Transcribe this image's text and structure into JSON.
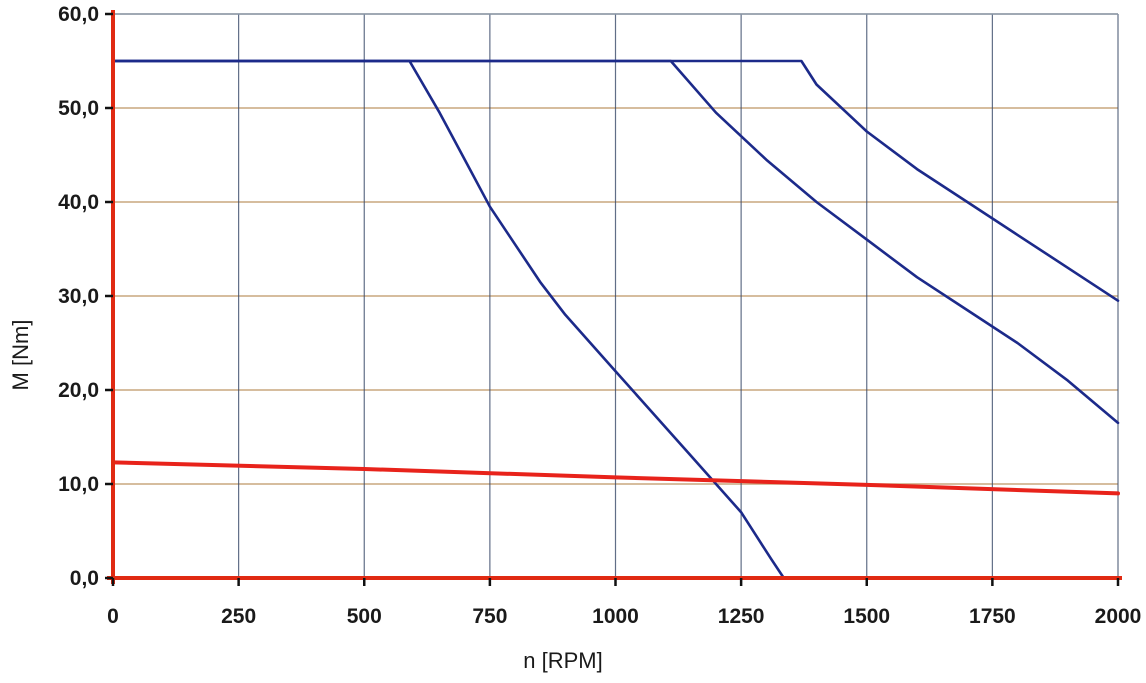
{
  "chart_data": {
    "type": "line",
    "title": "",
    "xlabel": "n [RPM]",
    "ylabel": "M [Nm]",
    "xlim": [
      0,
      2000
    ],
    "ylim": [
      0,
      60
    ],
    "xticks": [
      0,
      250,
      500,
      750,
      1000,
      1250,
      1500,
      1750,
      2000
    ],
    "xtick_labels": [
      "0",
      "250",
      "500",
      "750",
      "1000",
      "1250",
      "1500",
      "1750",
      "2000"
    ],
    "yticks": [
      0,
      10,
      20,
      30,
      40,
      50,
      60
    ],
    "ytick_labels": [
      "0,0",
      "10,0",
      "20,0",
      "30,0",
      "40,0",
      "50,0",
      "60,0"
    ],
    "grid": true,
    "legend": "none",
    "series": [
      {
        "color": "#1c2a8a",
        "x": [
          0,
          590,
          650,
          700,
          750,
          800,
          850,
          900,
          950,
          1000,
          1050,
          1100,
          1150,
          1200,
          1250,
          1280,
          1310,
          1335
        ],
        "y": [
          55,
          55,
          49.5,
          44.5,
          39.5,
          35.5,
          31.5,
          28.0,
          25.0,
          22.0,
          19.0,
          16.0,
          13.0,
          10.0,
          7.0,
          4.5,
          2.0,
          0
        ]
      },
      {
        "color": "#1c2a8a",
        "x": [
          0,
          1110,
          1200,
          1300,
          1400,
          1500,
          1600,
          1700,
          1800,
          1900,
          2000
        ],
        "y": [
          55,
          55,
          49.5,
          44.5,
          40.0,
          36.0,
          32.0,
          28.5,
          25.0,
          21.0,
          16.5
        ]
      },
      {
        "color": "#1c2a8a",
        "x": [
          0,
          1370,
          1400,
          1500,
          1600,
          1700,
          1800,
          1900,
          2000
        ],
        "y": [
          55,
          55,
          52.5,
          47.5,
          43.5,
          40.0,
          36.5,
          33.0,
          29.5
        ]
      },
      {
        "color": "#e8231b",
        "x": [
          0,
          500,
          1000,
          1500,
          2000
        ],
        "y": [
          12.3,
          11.6,
          10.7,
          9.9,
          9.0
        ]
      }
    ]
  },
  "colors": {
    "axis": "#e02a12",
    "grid_vertical": "#3a4a6a",
    "grid_horizontal": "#c9a77f",
    "frame": "#8a9bb0"
  }
}
